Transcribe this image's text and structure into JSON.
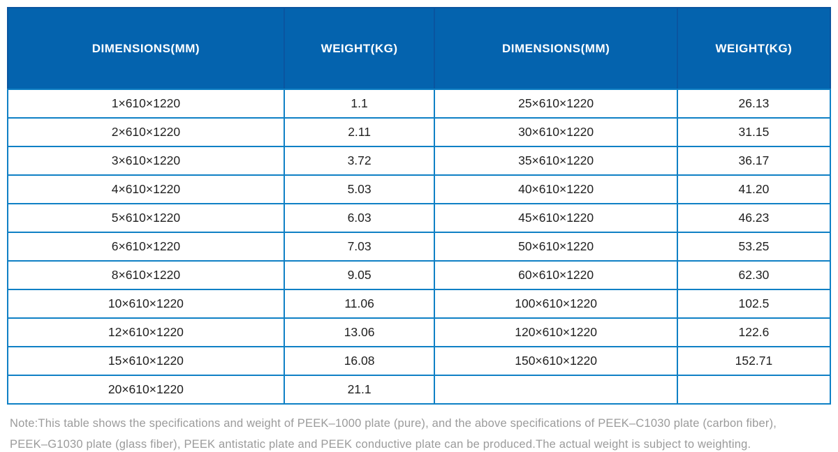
{
  "colors": {
    "header_bg": "#0463AE",
    "header_text": "#FFFFFF",
    "header_divider": "#0A55A0",
    "grid_line": "#0F80C5",
    "cell_text": "#1F1F1F",
    "note_text": "#9B9B9B"
  },
  "table": {
    "columns": [
      {
        "label": "DIMENSIONS(MM)"
      },
      {
        "label": "WEIGHT(KG)"
      },
      {
        "label": "DIMENSIONS(MM)"
      },
      {
        "label": "WEIGHT(KG)"
      }
    ],
    "rows": [
      [
        "1×610×1220",
        "1.1",
        "25×610×1220",
        "26.13"
      ],
      [
        "2×610×1220",
        "2.11",
        "30×610×1220",
        "31.15"
      ],
      [
        "3×610×1220",
        "3.72",
        "35×610×1220",
        "36.17"
      ],
      [
        "4×610×1220",
        "5.03",
        "40×610×1220",
        "41.20"
      ],
      [
        "5×610×1220",
        "6.03",
        "45×610×1220",
        "46.23"
      ],
      [
        "6×610×1220",
        "7.03",
        "50×610×1220",
        "53.25"
      ],
      [
        "8×610×1220",
        "9.05",
        "60×610×1220",
        "62.30"
      ],
      [
        "10×610×1220",
        "11.06",
        "100×610×1220",
        "102.5"
      ],
      [
        "12×610×1220",
        "13.06",
        "120×610×1220",
        "122.6"
      ],
      [
        "15×610×1220",
        "16.08",
        "150×610×1220",
        "152.71"
      ],
      [
        "20×610×1220",
        "21.1",
        "",
        ""
      ]
    ]
  },
  "note": {
    "line1": "Note:This table shows the specifications and weight of PEEK–1000 plate (pure), and the above specifications of PEEK–C1030 plate (carbon fiber),",
    "line2": "PEEK–G1030 plate (glass fiber), PEEK antistatic plate and PEEK conductive plate can be produced.The actual weight is subject to weighting."
  }
}
